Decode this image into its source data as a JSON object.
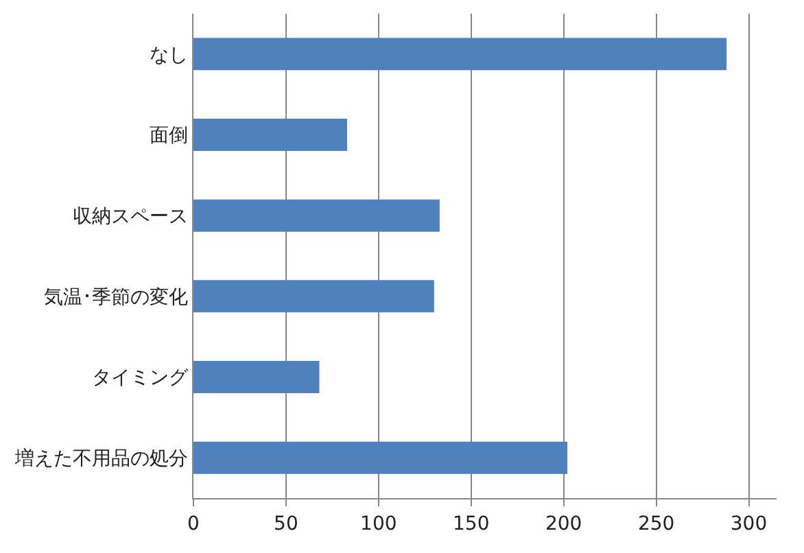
{
  "chart_data": {
    "type": "bar",
    "orientation": "horizontal",
    "categories": [
      "なし",
      "面倒",
      "収納スペース",
      "気温･季節の変化",
      "タイミング",
      "増えた不用品の処分"
    ],
    "values": [
      288,
      83,
      133,
      130,
      68,
      202
    ],
    "color": "#4f81bd",
    "xlim": [
      0,
      315
    ],
    "xticks": [
      0,
      50,
      100,
      150,
      200,
      250,
      300
    ],
    "grid": "x"
  }
}
